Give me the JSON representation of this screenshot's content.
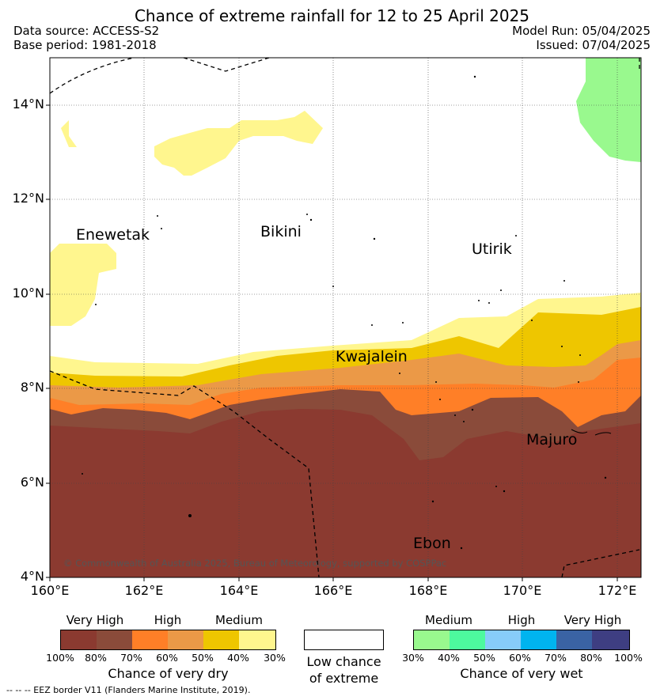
{
  "header": {
    "title": "Chance of extreme rainfall for 12 to 25 April 2025",
    "data_source": "Data source: ACCESS-S2",
    "base_period": "Base period: 1981-2018",
    "model_run": "Model Run: 05/04/2025",
    "issued": "Issued: 07/04/2025"
  },
  "map": {
    "lat_labels": [
      "14°N",
      "12°N",
      "10°N",
      "8°N",
      "6°N",
      "4°N"
    ],
    "lon_labels": [
      "160°E",
      "162°E",
      "164°E",
      "166°E",
      "168°E",
      "170°E",
      "172°E"
    ],
    "places": [
      "Enewetak",
      "Bikini",
      "Utirik",
      "Kwajalein",
      "Majuro",
      "Ebon"
    ],
    "copyright": "© Commonwealth of Australia 2025, Bureau of Meteorology, supported by COSPPac"
  },
  "legend": {
    "dry": {
      "levels": [
        "Very High",
        "High",
        "Medium"
      ],
      "ticks": [
        "100%",
        "80%",
        "70%",
        "60%",
        "50%",
        "40%",
        "30%"
      ],
      "caption": "Chance of very dry",
      "colors": [
        "#8b3a30",
        "#8a4b3a",
        "#ff7f27",
        "#eb9947",
        "#eec600",
        "#fff68e"
      ]
    },
    "neutral": {
      "caption_line1": "Low chance",
      "caption_line2": "of extreme"
    },
    "wet": {
      "levels": [
        "Medium",
        "High",
        "Very High"
      ],
      "ticks": [
        "30%",
        "40%",
        "50%",
        "60%",
        "70%",
        "80%",
        "100%"
      ],
      "caption": "Chance of very wet",
      "colors": [
        "#99f98e",
        "#4dfa9e",
        "#87ccfa",
        "#00b4ef",
        "#3a63a4",
        "#3e3e82"
      ]
    },
    "eez_note": "--  --  -- EEZ border V11 (Flanders Marine Institute, 2019)."
  }
}
